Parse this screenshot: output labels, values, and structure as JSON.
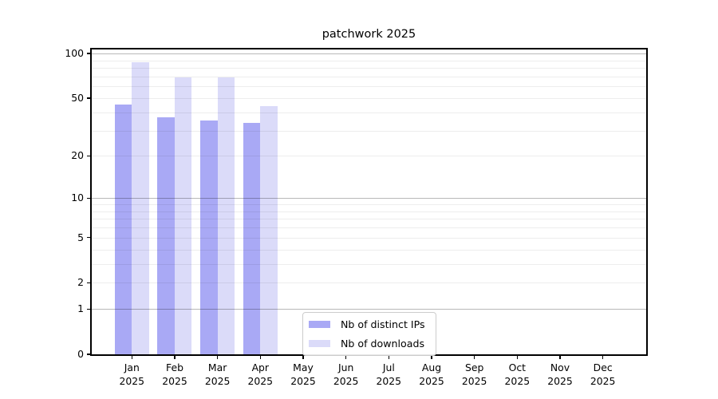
{
  "title": "patchwork 2025",
  "legend": {
    "items": [
      {
        "label": "Nb of distinct IPs",
        "color": "#a9a9f5"
      },
      {
        "label": "Nb of downloads",
        "color": "#dbdbf9"
      }
    ]
  },
  "chart_data": {
    "type": "bar",
    "title": "patchwork 2025",
    "categories": [
      {
        "month": "Jan",
        "year": "2025"
      },
      {
        "month": "Feb",
        "year": "2025"
      },
      {
        "month": "Mar",
        "year": "2025"
      },
      {
        "month": "Apr",
        "year": "2025"
      },
      {
        "month": "May",
        "year": "2025"
      },
      {
        "month": "Jun",
        "year": "2025"
      },
      {
        "month": "Jul",
        "year": "2025"
      },
      {
        "month": "Aug",
        "year": "2025"
      },
      {
        "month": "Sep",
        "year": "2025"
      },
      {
        "month": "Oct",
        "year": "2025"
      },
      {
        "month": "Nov",
        "year": "2025"
      },
      {
        "month": "Dec",
        "year": "2025"
      }
    ],
    "series": [
      {
        "name": "Nb of distinct IPs",
        "color": "#a9a9f5",
        "values": [
          45,
          37,
          35,
          34,
          0,
          0,
          0,
          0,
          0,
          0,
          0,
          0
        ]
      },
      {
        "name": "Nb of downloads",
        "color": "#dbdbf9",
        "values": [
          88,
          69,
          69,
          44,
          0,
          0,
          0,
          0,
          0,
          0,
          0,
          0
        ]
      }
    ],
    "yscale": "log(1+x)",
    "yticks": [
      0,
      1,
      2,
      5,
      10,
      20,
      50,
      100
    ],
    "ylim": [
      0,
      108
    ],
    "grid": {
      "major": [
        1,
        10,
        100
      ],
      "minor": [
        2,
        3,
        4,
        5,
        6,
        7,
        8,
        9,
        20,
        30,
        40,
        50,
        60,
        70,
        80,
        90
      ]
    },
    "legend_position": "inside lower center",
    "xlabel": "",
    "ylabel": ""
  }
}
